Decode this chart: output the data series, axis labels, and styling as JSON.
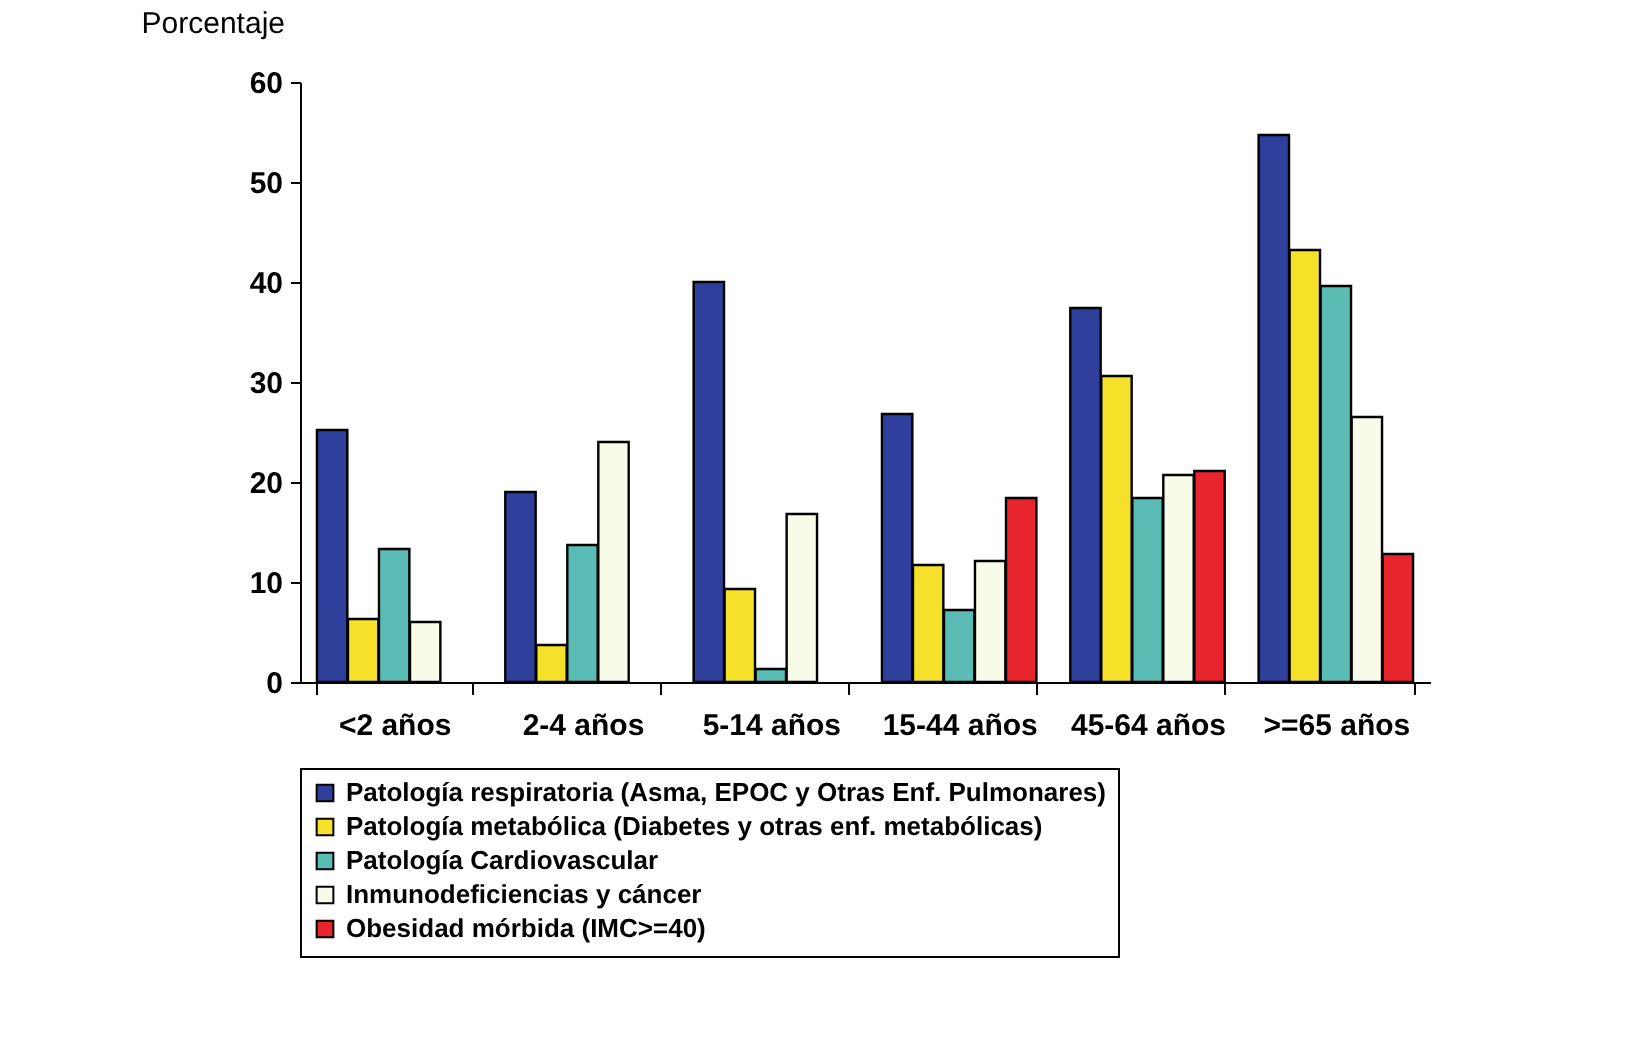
{
  "chart_data": {
    "type": "bar",
    "ylabel": "Porcentaje",
    "categories": [
      "<2 años",
      "2-4 años",
      "5-14 años",
      "15-44 años",
      "45-64 años",
      ">=65 años"
    ],
    "series": [
      {
        "name": "Patología respiratoria (Asma, EPOC y Otras Enf. Pulmonares)",
        "color": "#2e3f9c",
        "values": [
          25.2,
          19,
          40,
          26.8,
          37.4,
          54.7
        ]
      },
      {
        "name": "Patología metabólica (Diabetes y otras enf. metabólicas)",
        "color": "#f5e12a",
        "values": [
          6.3,
          3.7,
          9.3,
          11.7,
          30.6,
          43.2
        ]
      },
      {
        "name": "Patología Cardiovascular",
        "color": "#5bbcb5",
        "values": [
          13.3,
          13.7,
          1.3,
          7.2,
          18.4,
          39.6
        ]
      },
      {
        "name": "Inmunodeficiencias y cáncer",
        "color": "#f8fbe8",
        "values": [
          6,
          24,
          16.8,
          12.1,
          20.7,
          26.5
        ]
      },
      {
        "name": "Obesidad mórbida (IMC>=40)",
        "color": "#e8242c",
        "values": [
          null,
          null,
          null,
          18.4,
          21.1,
          12.8
        ]
      }
    ],
    "ylim": [
      0,
      60
    ],
    "yticks": [
      0,
      10,
      20,
      30,
      40,
      50,
      60
    ],
    "grid": false,
    "legend": "bottom"
  }
}
